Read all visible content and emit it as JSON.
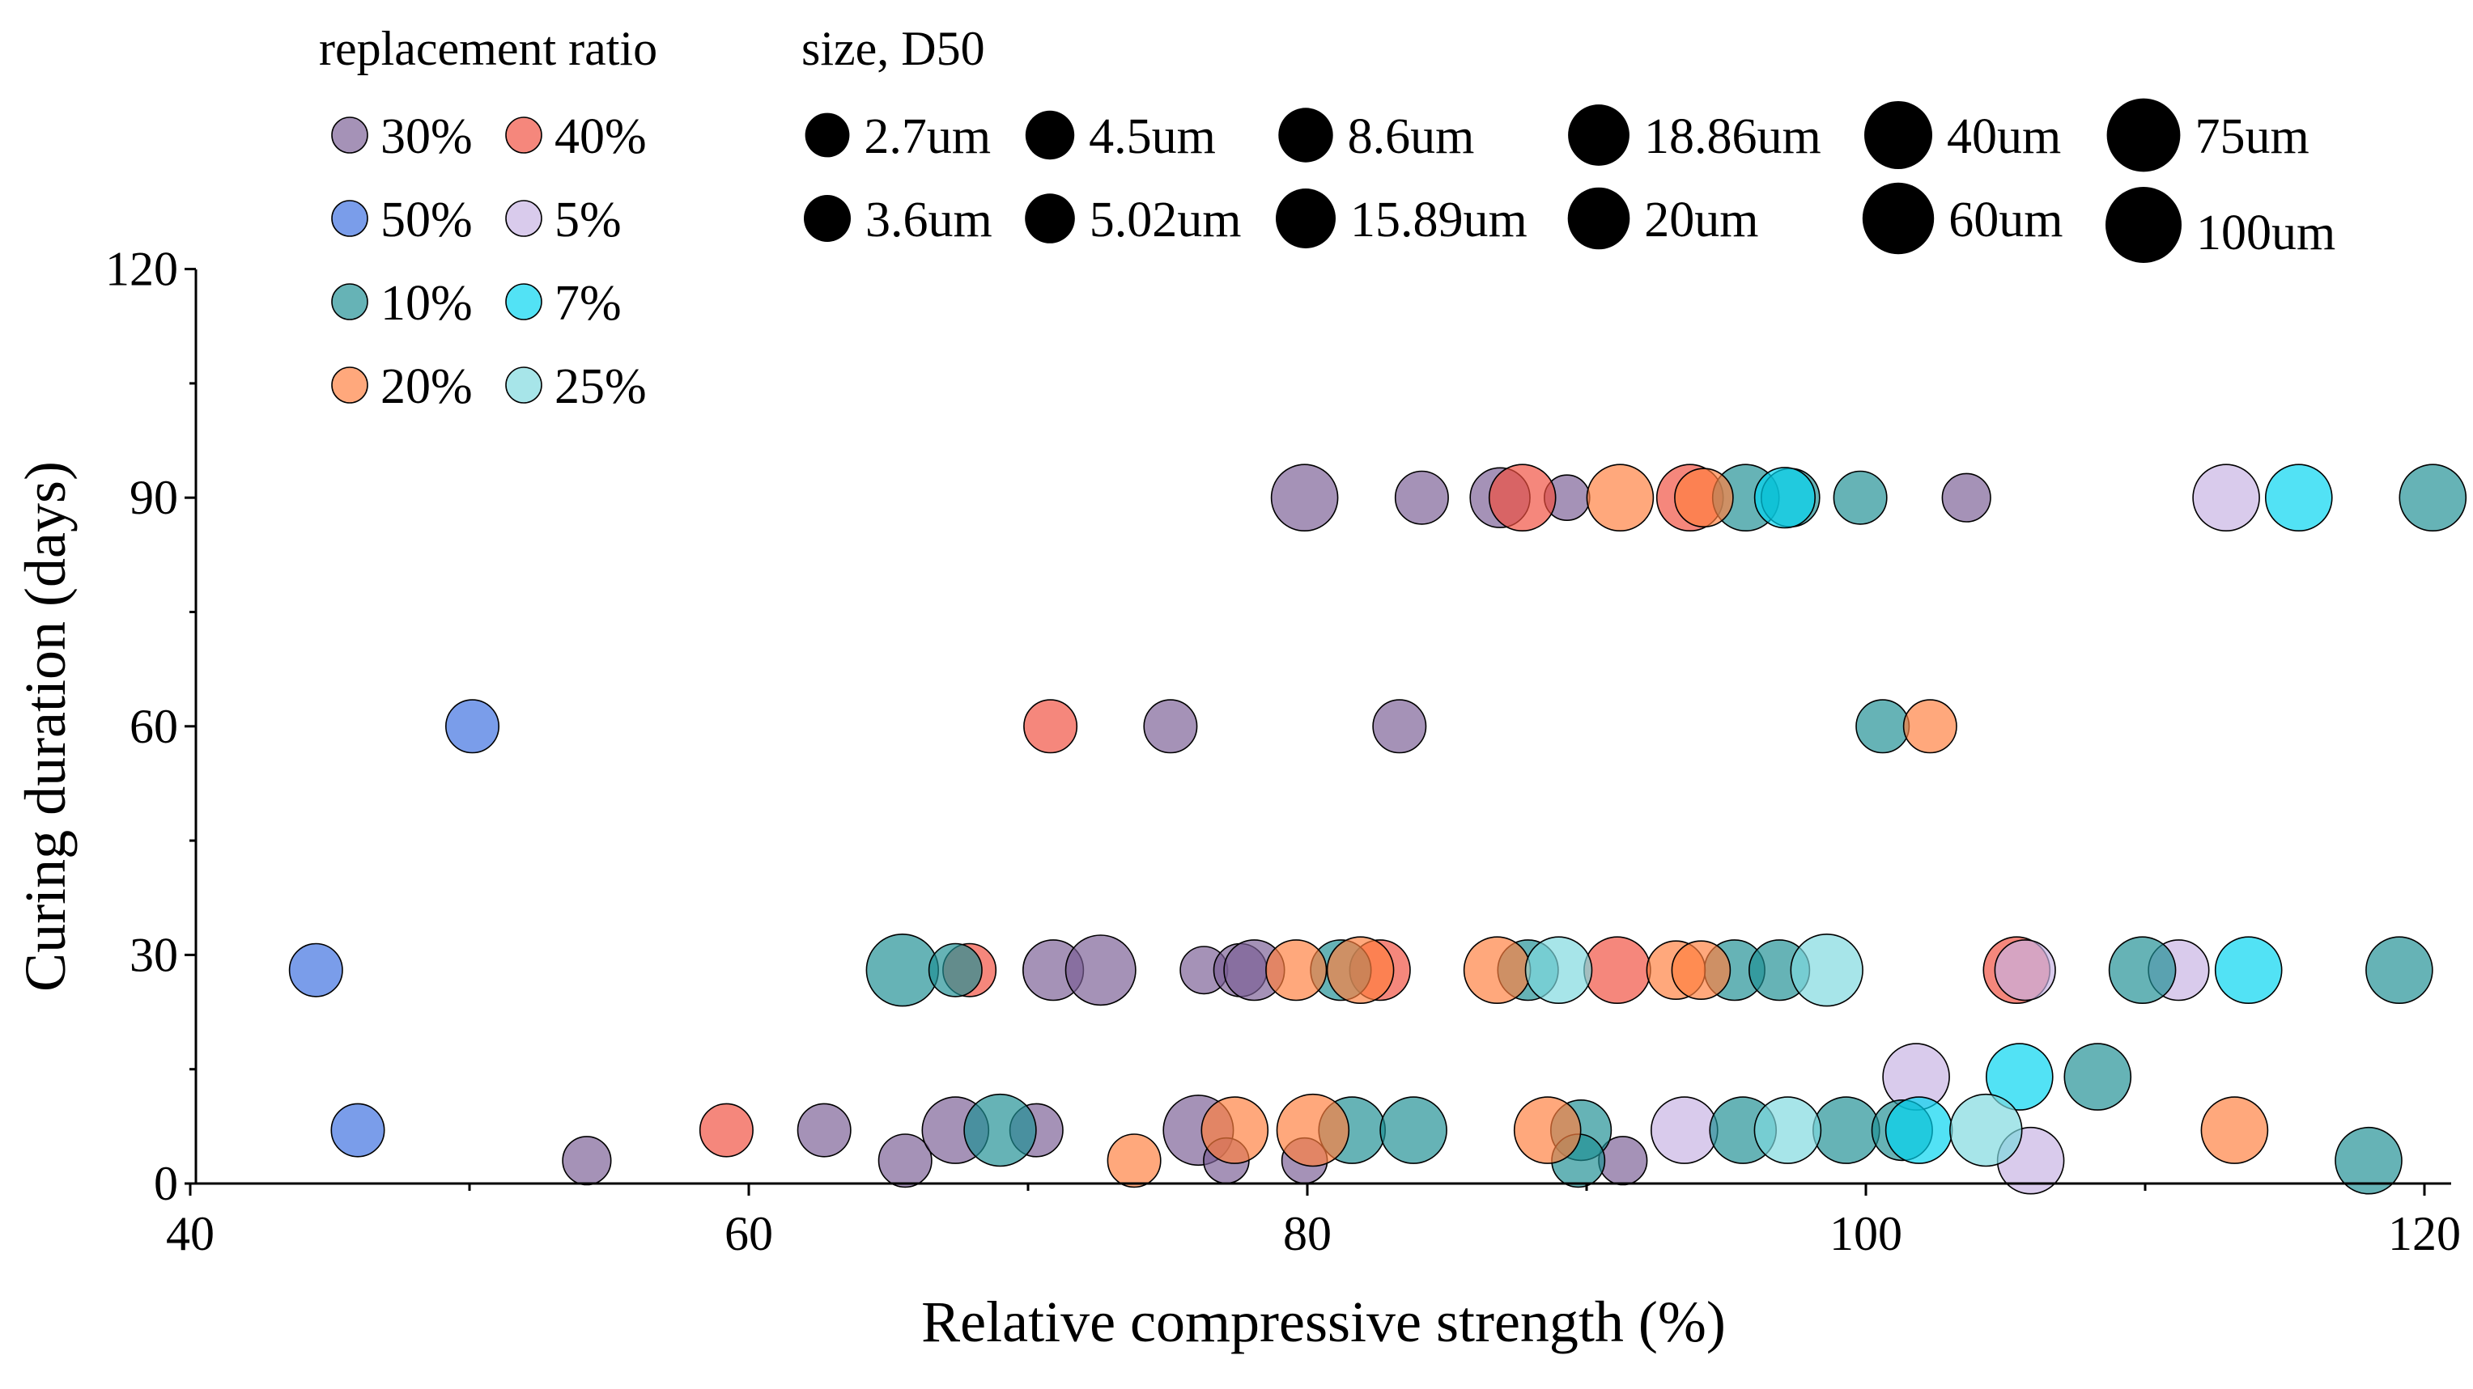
{
  "chart_data": {
    "type": "scatter",
    "xlabel": "Relative compressive strength (%)",
    "ylabel": "Curing duration (days)",
    "xlim": [
      40,
      122
    ],
    "ylim": [
      0,
      120
    ],
    "xticks": [
      40,
      60,
      80,
      100,
      120
    ],
    "yticks": [
      0,
      30,
      60,
      90,
      120
    ],
    "grid": false,
    "color_legend": {
      "title": "replacement ratio",
      "items": [
        {
          "label": "30%",
          "color": "#7a5f95"
        },
        {
          "label": "40%",
          "color": "#f04e3e"
        },
        {
          "label": "50%",
          "color": "#3b6fe0"
        },
        {
          "label": "5%",
          "color": "#c7b3e3"
        },
        {
          "label": "10%",
          "color": "#1d8f93"
        },
        {
          "label": "7%",
          "color": "#00d4f0"
        },
        {
          "label": "20%",
          "color": "#ff7f3e"
        },
        {
          "label": "25%",
          "color": "#7ed8df"
        }
      ]
    },
    "size_legend": {
      "title": "size, D50",
      "items": [
        {
          "label": "2.7um",
          "d50": 2.7
        },
        {
          "label": "3.6um",
          "d50": 3.6
        },
        {
          "label": "4.5um",
          "d50": 4.5
        },
        {
          "label": "5.02um",
          "d50": 5.02
        },
        {
          "label": "8.6um",
          "d50": 8.6
        },
        {
          "label": "15.89um",
          "d50": 15.89
        },
        {
          "label": "18.86um",
          "d50": 18.86
        },
        {
          "label": "20um",
          "d50": 20
        },
        {
          "label": "40um",
          "d50": 40
        },
        {
          "label": "60um",
          "d50": 60
        },
        {
          "label": "75um",
          "d50": 75
        },
        {
          "label": "100um",
          "d50": 100
        }
      ]
    },
    "series": [
      {
        "ratio": "30%",
        "points": [
          [
            79.9,
            90,
            40
          ],
          [
            84.1,
            90,
            8.6
          ],
          [
            86.9,
            90,
            18.86
          ],
          [
            89.3,
            90,
            3.6
          ],
          [
            103.6,
            90,
            5.02
          ],
          [
            75.1,
            60,
            8.6
          ],
          [
            83.3,
            60,
            8.6
          ],
          [
            70.9,
            28,
            20
          ],
          [
            72.6,
            28,
            60
          ],
          [
            76.3,
            28,
            4.5
          ],
          [
            77.6,
            28,
            8.6
          ],
          [
            78.1,
            28,
            20
          ],
          [
            54.2,
            3,
            5.02
          ],
          [
            65.6,
            3,
            8.6
          ],
          [
            62.7,
            7,
            8.6
          ],
          [
            67.4,
            7,
            40
          ],
          [
            70.3,
            7,
            8.6
          ],
          [
            76.1,
            7,
            60
          ],
          [
            77.1,
            3,
            3.6
          ],
          [
            79.9,
            3,
            3.6
          ],
          [
            91.3,
            3,
            5.02
          ]
        ]
      },
      {
        "ratio": "40%",
        "points": [
          [
            87.7,
            90,
            40
          ],
          [
            93.7,
            90,
            40
          ],
          [
            70.8,
            60,
            8.6
          ],
          [
            67.9,
            28,
            8.6
          ],
          [
            82.6,
            28,
            20
          ],
          [
            91.1,
            28,
            40
          ],
          [
            105.4,
            28,
            40
          ],
          [
            59.2,
            7,
            8.6
          ]
        ]
      },
      {
        "ratio": "50%",
        "points": [
          [
            50.1,
            60,
            8.6
          ],
          [
            44.5,
            28,
            8.6
          ],
          [
            46.0,
            7,
            8.6
          ]
        ]
      },
      {
        "ratio": "5%",
        "points": [
          [
            112.9,
            90,
            40
          ],
          [
            105.7,
            28,
            20
          ],
          [
            111.2,
            28,
            20
          ],
          [
            101.8,
            14,
            40
          ],
          [
            93.5,
            7,
            40
          ],
          [
            105.9,
            3,
            40
          ]
        ]
      },
      {
        "ratio": "10%",
        "points": [
          [
            95.7,
            90,
            40
          ],
          [
            97.3,
            90,
            15.89
          ],
          [
            99.8,
            90,
            8.6
          ],
          [
            120.3,
            90,
            40
          ],
          [
            100.6,
            60,
            8.6
          ],
          [
            65.5,
            28,
            75
          ],
          [
            67.4,
            28,
            8.6
          ],
          [
            81.2,
            28,
            20
          ],
          [
            87.9,
            28,
            20
          ],
          [
            95.3,
            28,
            20
          ],
          [
            96.9,
            28,
            20
          ],
          [
            109.9,
            28,
            40
          ],
          [
            119.1,
            28,
            40
          ],
          [
            108.3,
            14,
            40
          ],
          [
            69.0,
            7,
            75
          ],
          [
            81.6,
            7,
            40
          ],
          [
            83.8,
            7,
            40
          ],
          [
            89.8,
            7,
            20
          ],
          [
            89.7,
            3,
            8.6
          ],
          [
            95.6,
            7,
            40
          ],
          [
            99.3,
            7,
            40
          ],
          [
            101.3,
            7,
            20
          ],
          [
            118.0,
            3,
            40
          ]
        ]
      },
      {
        "ratio": "7%",
        "points": [
          [
            97.1,
            90,
            20
          ],
          [
            115.5,
            90,
            40
          ],
          [
            113.7,
            28,
            40
          ],
          [
            105.5,
            14,
            40
          ],
          [
            101.9,
            7,
            40
          ]
        ]
      },
      {
        "ratio": "20%",
        "points": [
          [
            91.2,
            90,
            40
          ],
          [
            94.2,
            90,
            15.89
          ],
          [
            102.3,
            60,
            8.6
          ],
          [
            79.6,
            28,
            20
          ],
          [
            81.9,
            28,
            40
          ],
          [
            86.8,
            28,
            40
          ],
          [
            93.2,
            28,
            15.89
          ],
          [
            94.1,
            28,
            15.89
          ],
          [
            73.8,
            3,
            8.6
          ],
          [
            77.4,
            7,
            40
          ],
          [
            80.2,
            7,
            75
          ],
          [
            88.6,
            7,
            40
          ],
          [
            113.2,
            7,
            40
          ]
        ]
      },
      {
        "ratio": "25%",
        "points": [
          [
            89.0,
            28,
            40
          ],
          [
            98.6,
            28,
            75
          ],
          [
            97.2,
            7,
            40
          ],
          [
            104.3,
            7,
            75
          ]
        ]
      }
    ]
  }
}
